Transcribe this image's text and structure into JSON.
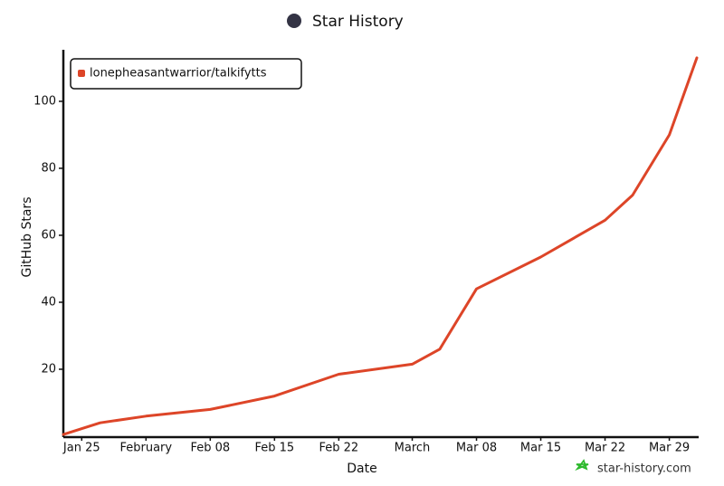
{
  "chart_data": {
    "type": "line",
    "title": "Star History",
    "xlabel": "Date",
    "ylabel": "GitHub Stars",
    "watermark": "star-history.com",
    "x": [
      "Jan 23",
      "Jan 27",
      "Feb 01",
      "Feb 08",
      "Feb 15",
      "Feb 22",
      "Mar 01",
      "Mar 04",
      "Mar 08",
      "Mar 15",
      "Mar 22",
      "Mar 25",
      "Mar 29",
      "Apr 01"
    ],
    "series": [
      {
        "name": "lonepheasantwarrior/talkifytts",
        "color": "#dd4528",
        "values": [
          0.5,
          4,
          6,
          8,
          12,
          18.5,
          21.5,
          26,
          44,
          53.5,
          64.5,
          72,
          90,
          113
        ]
      }
    ],
    "xlim": [
      "Jan 23",
      "Apr 01"
    ],
    "xticks": [
      {
        "value": "Jan 25",
        "label": "Jan 25"
      },
      {
        "value": "Feb 01",
        "label": "February"
      },
      {
        "value": "Feb 08",
        "label": "Feb 08"
      },
      {
        "value": "Feb 15",
        "label": "Feb 15"
      },
      {
        "value": "Feb 22",
        "label": "Feb 22"
      },
      {
        "value": "Mar 01",
        "label": "March"
      },
      {
        "value": "Mar 08",
        "label": "Mar 08"
      },
      {
        "value": "Mar 15",
        "label": "Mar 15"
      },
      {
        "value": "Mar 22",
        "label": "Mar 22"
      },
      {
        "value": "Mar 29",
        "label": "Mar 29"
      }
    ],
    "ylim": [
      0,
      113.5
    ],
    "yticks": [
      20,
      40,
      60,
      80,
      100
    ],
    "legend": "upper left",
    "grid": false
  }
}
